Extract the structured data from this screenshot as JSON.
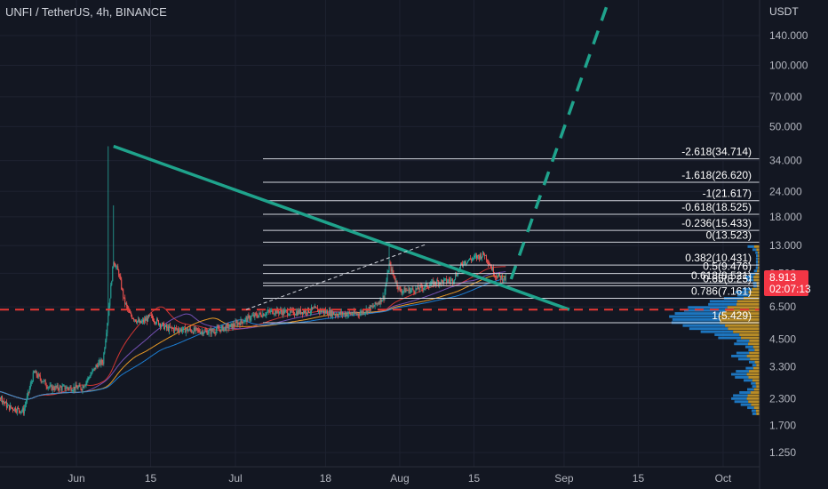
{
  "header": {
    "title": "UNFI / TetherUS, 4h, BINANCE",
    "currency": "USDT"
  },
  "price_badge": {
    "price": "8.913",
    "countdown": "02:07:13",
    "color": "#f23645"
  },
  "colors": {
    "background": "#131722",
    "candle_up": "#26a69a",
    "candle_down": "#ef5350",
    "trendline": "#1fa38c",
    "support_dash": "#e53935",
    "fib_lines": "#d1d4dc",
    "volume_profile_up": "#2196f3",
    "volume_profile_down": "#f0b429"
  },
  "chart_data": {
    "type": "candlestick",
    "symbol": "UNFI / TetherUS",
    "timeframe": "4h",
    "exchange": "BINANCE",
    "y_scale": "log",
    "ylim": [
      1.1,
      230
    ],
    "y_ticks": [
      "140.000",
      "100.000",
      "70.000",
      "50.000",
      "34.000",
      "24.000",
      "18.000",
      "13.000",
      "9.500",
      "6.500",
      "4.500",
      "3.300",
      "2.300",
      "1.700",
      "1.250"
    ],
    "x_ticks": [
      "Jun",
      "15",
      "Jul",
      "18",
      "Aug",
      "15",
      "Sep",
      "15",
      "Oct"
    ],
    "last_price": 8.913,
    "close_path": [
      [
        "2021-05-13",
        2.3
      ],
      [
        "2021-05-16",
        2.7
      ],
      [
        "2021-05-19",
        2.1
      ],
      [
        "2021-05-22",
        2.0
      ],
      [
        "2021-05-24",
        3.1
      ],
      [
        "2021-05-27",
        2.6
      ],
      [
        "2021-05-30",
        2.6
      ],
      [
        "2021-06-02",
        2.6
      ],
      [
        "2021-06-05",
        3.4
      ],
      [
        "2021-06-06",
        3.5
      ],
      [
        "2021-06-07",
        6.0
      ],
      [
        "2021-06-08",
        11.0
      ],
      [
        "2021-06-09",
        9.5
      ],
      [
        "2021-06-10",
        7.0
      ],
      [
        "2021-06-11",
        6.0
      ],
      [
        "2021-06-13",
        5.4
      ],
      [
        "2021-06-15",
        5.8
      ],
      [
        "2021-06-18",
        5.1
      ],
      [
        "2021-06-22",
        5.0
      ],
      [
        "2021-06-26",
        4.9
      ],
      [
        "2021-06-30",
        5.2
      ],
      [
        "2021-07-04",
        5.8
      ],
      [
        "2021-07-08",
        6.2
      ],
      [
        "2021-07-12",
        6.1
      ],
      [
        "2021-07-16",
        6.3
      ],
      [
        "2021-07-20",
        6.0
      ],
      [
        "2021-07-24",
        6.0
      ],
      [
        "2021-07-27",
        6.5
      ],
      [
        "2021-07-29",
        7.3
      ],
      [
        "2021-07-30",
        10.5
      ],
      [
        "2021-08-01",
        7.8
      ],
      [
        "2021-08-04",
        7.9
      ],
      [
        "2021-08-08",
        8.6
      ],
      [
        "2021-08-11",
        8.8
      ],
      [
        "2021-08-13",
        10.8
      ],
      [
        "2021-08-15",
        11.3
      ],
      [
        "2021-08-17",
        11.8
      ],
      [
        "2021-08-19",
        9.3
      ],
      [
        "2021-08-21",
        8.9
      ]
    ],
    "spikes": [
      [
        "2021-06-07",
        40.0
      ],
      [
        "2021-06-08",
        20.5
      ],
      [
        "2021-07-30",
        13.5
      ]
    ],
    "fib_levels": [
      {
        "label": "-2.618(34.714)",
        "value": 34.714
      },
      {
        "label": "-1.618(26.620)",
        "value": 26.62
      },
      {
        "label": "-1(21.617)",
        "value": 21.617
      },
      {
        "label": "-0.618(18.525)",
        "value": 18.525
      },
      {
        "label": "-0.236(15.433)",
        "value": 15.433
      },
      {
        "label": "0(13.523)",
        "value": 13.523
      },
      {
        "label": "0.382(10.431)",
        "value": 10.431
      },
      {
        "label": "0.5(9.476)",
        "value": 9.476
      },
      {
        "label": "0.618(8.521)",
        "value": 8.521
      },
      {
        "label": "0.65(8.25)",
        "value": 8.25
      },
      {
        "label": "0.786(7.161)",
        "value": 7.161
      },
      {
        "label": "1(5.429)",
        "value": 5.429
      }
    ],
    "fib_range": [
      "2021-07-01",
      "2021-09-20"
    ],
    "trendline": [
      [
        "2021-06-08",
        40.0
      ],
      [
        "2021-09-02",
        6.3
      ]
    ],
    "projection": [
      [
        "2021-08-22",
        8.9
      ],
      [
        "2021-09-10",
        230.0
      ]
    ],
    "support_level": 6.3,
    "dashed_channel": [
      [
        "2021-07-03",
        6.3
      ],
      [
        "2021-08-06",
        13.2
      ]
    ]
  }
}
